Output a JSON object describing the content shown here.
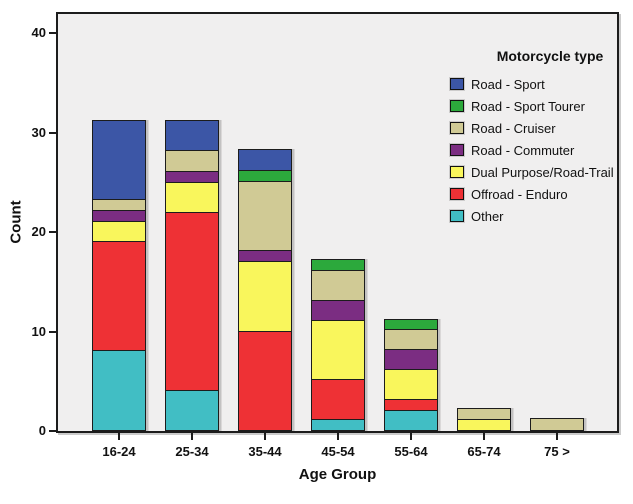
{
  "chart_data": {
    "type": "bar",
    "stacked": true,
    "xlabel": "Age Group",
    "ylabel": "Count",
    "categories": [
      "16-24",
      "25-34",
      "35-44",
      "45-54",
      "55-64",
      "65-74",
      "75 >"
    ],
    "yticks": [
      0,
      10,
      20,
      30,
      40
    ],
    "ylim": [
      0,
      42
    ],
    "grid": false,
    "legend": {
      "title": "Motorcycle type",
      "position": "inside-top-right"
    },
    "series": [
      {
        "name": "Road - Sport",
        "color": "#3c56a6",
        "values": [
          8,
          3,
          2,
          0,
          0,
          0,
          0
        ]
      },
      {
        "name": "Road - Sport Tourer",
        "color": "#2ca93c",
        "values": [
          0,
          0,
          1,
          1,
          1,
          0,
          0
        ]
      },
      {
        "name": "Road - Cruiser",
        "color": "#d0ca95",
        "values": [
          1,
          2,
          7,
          3,
          2,
          1,
          1
        ]
      },
      {
        "name": "Road - Commuter",
        "color": "#7b2d82",
        "values": [
          1,
          1,
          1,
          2,
          2,
          0,
          0
        ]
      },
      {
        "name": "Dual Purpose/Road-Trail",
        "color": "#f9f65c",
        "values": [
          2,
          3,
          7,
          6,
          3,
          1,
          0
        ]
      },
      {
        "name": "Offroad - Enduro",
        "color": "#ee3135",
        "values": [
          11,
          18,
          10,
          4,
          1,
          0,
          0
        ]
      },
      {
        "name": "Other",
        "color": "#41bec4",
        "values": [
          8,
          4,
          0,
          1,
          2,
          0,
          0
        ]
      }
    ],
    "stack_order_bottom_to_top": [
      "Other",
      "Offroad - Enduro",
      "Dual Purpose/Road-Trail",
      "Road - Commuter",
      "Road - Cruiser",
      "Road - Sport Tourer",
      "Road - Sport"
    ],
    "bar_totals": [
      31,
      31,
      28,
      17,
      11,
      2,
      1
    ],
    "colors": {
      "plot_background": "#f0efef",
      "frame_border": "#1c1c1c",
      "figure_background": "#ffffff"
    }
  }
}
